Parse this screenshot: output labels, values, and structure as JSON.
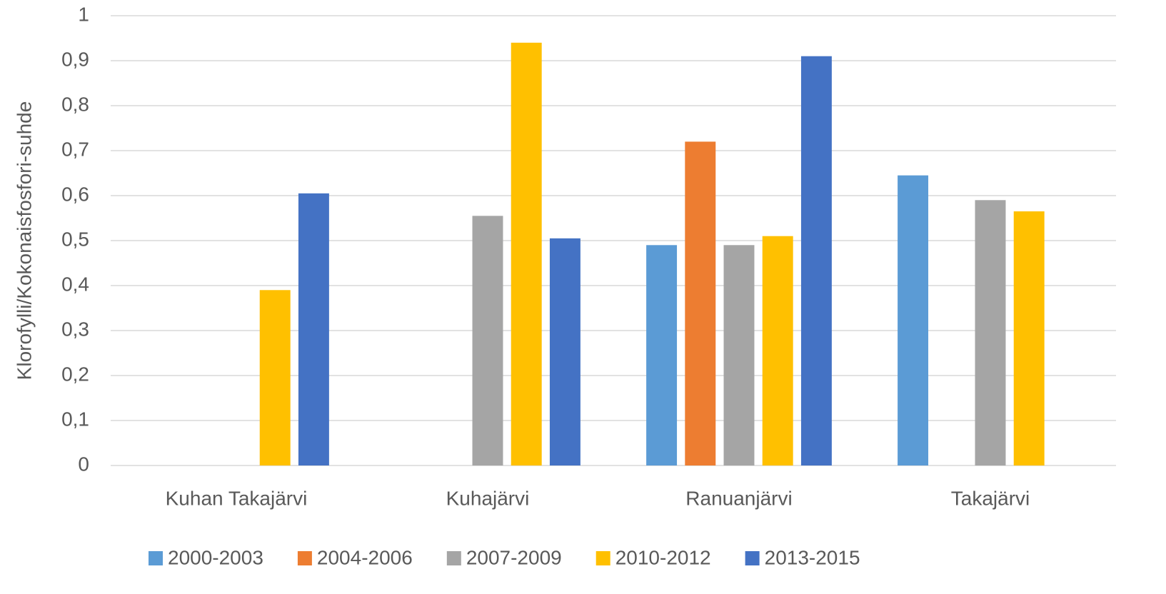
{
  "chart_data": {
    "type": "bar",
    "y_label": "Klorofylli/Kokonaisfosfori-suhde",
    "categories": [
      "Kuhan Takajärvi",
      "Kuhajärvi",
      "Ranuanjärvi",
      "Takajärvi"
    ],
    "series": [
      {
        "name": "2000-2003",
        "color": "#5b9bd5",
        "values": [
          null,
          null,
          0.49,
          0.645
        ]
      },
      {
        "name": "2004-2006",
        "color": "#ed7d31",
        "values": [
          null,
          null,
          0.72,
          null
        ]
      },
      {
        "name": "2007-2009",
        "color": "#a5a5a5",
        "values": [
          null,
          0.555,
          0.49,
          0.59
        ]
      },
      {
        "name": "2010-2012",
        "color": "#ffc000",
        "values": [
          0.39,
          0.94,
          0.51,
          0.565
        ]
      },
      {
        "name": "2013-2015",
        "color": "#4472c4",
        "values": [
          0.605,
          0.505,
          0.91,
          null
        ]
      }
    ],
    "ylim": [
      0,
      1
    ],
    "yticks": [
      0,
      {
        "value": 0.1,
        "label": "0,1"
      },
      {
        "value": 0.2,
        "label": "0,2"
      },
      {
        "value": 0.3,
        "label": "0,3"
      },
      {
        "value": 0.4,
        "label": "0,4"
      },
      {
        "value": 0.5,
        "label": "0,5"
      },
      {
        "value": 0.6,
        "label": "0,6"
      },
      {
        "value": 0.7,
        "label": "0,7"
      },
      {
        "value": 0.8,
        "label": "0,8"
      },
      {
        "value": 0.9,
        "label": "0,9"
      },
      1
    ],
    "grid": true,
    "legend": "bottom"
  }
}
